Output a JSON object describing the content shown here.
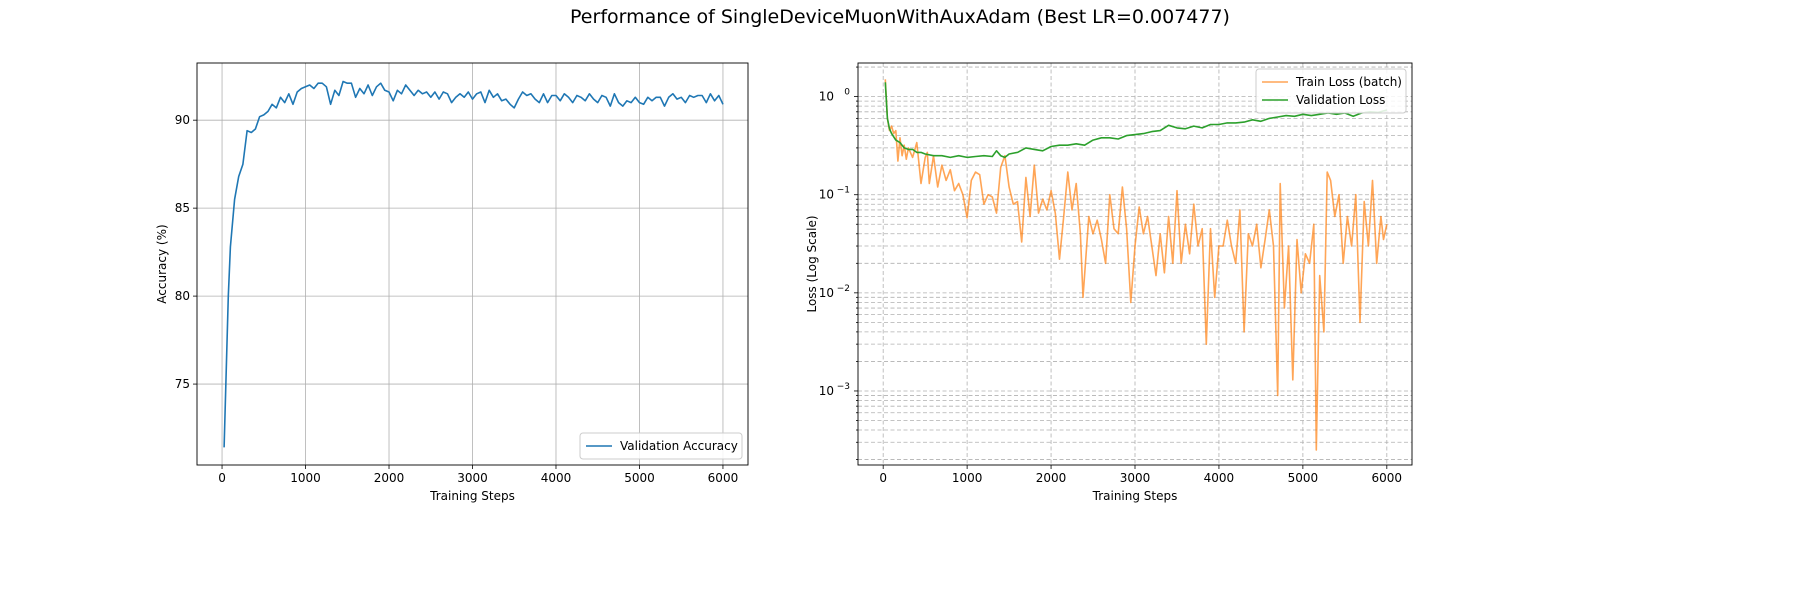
{
  "title": "Performance of SingleDeviceMuonWithAuxAdam (Best LR=0.007477)",
  "chart_data": [
    {
      "type": "line",
      "xlabel": "Training Steps",
      "ylabel": "Accuracy (%)",
      "xlim": [
        -300,
        6300
      ],
      "ylim": [
        70.4,
        93.25
      ],
      "xticks": [
        0,
        1000,
        2000,
        3000,
        4000,
        5000,
        6000
      ],
      "yticks": [
        75,
        80,
        85,
        90
      ],
      "grid": true,
      "legend_placement": "lower-right",
      "series": [
        {
          "name": "Validation Accuracy",
          "color": "#1f77b4",
          "x": [
            25,
            75,
            100,
            150,
            200,
            250,
            300,
            350,
            400,
            450,
            500,
            550,
            600,
            650,
            700,
            750,
            800,
            850,
            900,
            950,
            1000,
            1050,
            1100,
            1150,
            1200,
            1250,
            1300,
            1350,
            1400,
            1450,
            1500,
            1550,
            1600,
            1650,
            1700,
            1750,
            1800,
            1850,
            1900,
            1950,
            2000,
            2050,
            2100,
            2150,
            2200,
            2250,
            2300,
            2350,
            2400,
            2450,
            2500,
            2550,
            2600,
            2650,
            2700,
            2750,
            2800,
            2850,
            2900,
            2950,
            3000,
            3050,
            3100,
            3150,
            3200,
            3250,
            3300,
            3350,
            3400,
            3450,
            3500,
            3550,
            3600,
            3650,
            3700,
            3750,
            3800,
            3850,
            3900,
            3950,
            4000,
            4050,
            4100,
            4150,
            4200,
            4250,
            4300,
            4350,
            4400,
            4450,
            4500,
            4550,
            4600,
            4650,
            4700,
            4750,
            4800,
            4850,
            4900,
            4950,
            5000,
            5050,
            5100,
            5150,
            5200,
            5250,
            5300,
            5350,
            5400,
            5450,
            5500,
            5550,
            5600,
            5650,
            5700,
            5750,
            5800,
            5850,
            5900,
            5950,
            6000
          ],
          "y": [
            71.4,
            80.0,
            82.8,
            85.5,
            86.8,
            87.5,
            89.4,
            89.3,
            89.5,
            90.2,
            90.3,
            90.5,
            90.9,
            90.7,
            91.3,
            91.0,
            91.5,
            90.9,
            91.6,
            91.8,
            91.9,
            92.0,
            91.8,
            92.1,
            92.1,
            91.9,
            90.9,
            91.7,
            91.4,
            92.2,
            92.1,
            92.1,
            91.3,
            91.8,
            91.5,
            92.0,
            91.4,
            91.9,
            92.1,
            91.7,
            91.6,
            91.1,
            91.7,
            91.5,
            92.0,
            91.7,
            91.4,
            91.7,
            91.5,
            91.6,
            91.3,
            91.6,
            91.2,
            91.6,
            91.5,
            91.0,
            91.3,
            91.5,
            91.3,
            91.6,
            91.2,
            91.5,
            91.6,
            91.0,
            91.7,
            91.3,
            91.5,
            91.1,
            91.2,
            90.9,
            90.7,
            91.2,
            91.6,
            91.4,
            91.5,
            91.2,
            91.0,
            91.5,
            91.0,
            91.4,
            91.4,
            91.1,
            91.5,
            91.3,
            91.0,
            91.4,
            91.3,
            91.1,
            91.5,
            91.2,
            91.0,
            91.4,
            91.3,
            90.8,
            91.5,
            91.0,
            90.8,
            91.1,
            91.0,
            91.3,
            91.0,
            90.9,
            91.3,
            91.1,
            91.3,
            91.3,
            90.8,
            91.3,
            91.5,
            91.2,
            91.3,
            91.0,
            91.4,
            91.3,
            91.4,
            91.4,
            91.0,
            91.5,
            91.1,
            91.4,
            90.9
          ]
        }
      ]
    },
    {
      "type": "line",
      "yscale": "log",
      "xlabel": "Training Steps",
      "ylabel": "Loss (Log Scale)",
      "xlim": [
        -300,
        6300
      ],
      "ylim": [
        0.000176,
        2.2
      ],
      "xticks": [
        0,
        1000,
        2000,
        3000,
        4000,
        5000,
        6000
      ],
      "yticks": [
        -3,
        -2,
        -1,
        0
      ],
      "ytick_base": "10",
      "grid": true,
      "legend_placement": "upper-right",
      "series": [
        {
          "name": "Train Loss (batch)",
          "color": "#ff7f0e",
          "x": [
            25,
            50,
            75,
            100,
            125,
            150,
            175,
            200,
            225,
            250,
            275,
            300,
            350,
            400,
            450,
            500,
            525,
            550,
            600,
            650,
            700,
            750,
            800,
            850,
            900,
            950,
            1000,
            1050,
            1100,
            1150,
            1200,
            1250,
            1300,
            1350,
            1400,
            1450,
            1500,
            1550,
            1600,
            1650,
            1700,
            1750,
            1800,
            1850,
            1900,
            1950,
            2000,
            2050,
            2100,
            2150,
            2200,
            2250,
            2300,
            2350,
            2380,
            2450,
            2500,
            2550,
            2600,
            2650,
            2700,
            2750,
            2800,
            2850,
            2900,
            2950,
            3000,
            3050,
            3100,
            3150,
            3200,
            3250,
            3300,
            3350,
            3400,
            3450,
            3500,
            3550,
            3600,
            3650,
            3700,
            3750,
            3800,
            3850,
            3900,
            3950,
            4000,
            4050,
            4100,
            4150,
            4200,
            4250,
            4300,
            4350,
            4400,
            4450,
            4500,
            4550,
            4600,
            4650,
            4700,
            4730,
            4780,
            4830,
            4880,
            4930,
            4980,
            5030,
            5080,
            5130,
            5160,
            5200,
            5250,
            5290,
            5330,
            5380,
            5430,
            5480,
            5530,
            5580,
            5630,
            5680,
            5730,
            5780,
            5830,
            5880,
            5930,
            5960,
            6000
          ],
          "y": [
            1.5,
            0.6,
            0.45,
            0.5,
            0.42,
            0.45,
            0.22,
            0.38,
            0.25,
            0.32,
            0.23,
            0.3,
            0.24,
            0.34,
            0.13,
            0.24,
            0.27,
            0.13,
            0.25,
            0.12,
            0.2,
            0.14,
            0.18,
            0.11,
            0.13,
            0.1,
            0.058,
            0.14,
            0.17,
            0.16,
            0.08,
            0.1,
            0.095,
            0.065,
            0.19,
            0.25,
            0.12,
            0.08,
            0.085,
            0.033,
            0.15,
            0.06,
            0.2,
            0.065,
            0.09,
            0.07,
            0.11,
            0.065,
            0.022,
            0.06,
            0.17,
            0.07,
            0.13,
            0.04,
            0.009,
            0.06,
            0.04,
            0.055,
            0.035,
            0.02,
            0.1,
            0.045,
            0.04,
            0.12,
            0.045,
            0.008,
            0.03,
            0.075,
            0.04,
            0.06,
            0.03,
            0.015,
            0.04,
            0.016,
            0.06,
            0.02,
            0.11,
            0.02,
            0.05,
            0.025,
            0.08,
            0.03,
            0.045,
            0.003,
            0.045,
            0.009,
            0.03,
            0.03,
            0.055,
            0.03,
            0.02,
            0.07,
            0.004,
            0.04,
            0.03,
            0.05,
            0.018,
            0.035,
            0.07,
            0.03,
            0.0009,
            0.13,
            0.007,
            0.03,
            0.0013,
            0.035,
            0.01,
            0.025,
            0.02,
            0.05,
            0.00025,
            0.015,
            0.004,
            0.17,
            0.14,
            0.06,
            0.1,
            0.02,
            0.06,
            0.03,
            0.1,
            0.005,
            0.085,
            0.03,
            0.14,
            0.02,
            0.06,
            0.035,
            0.05
          ]
        },
        {
          "name": "Validation Loss",
          "color": "#2ca02c",
          "x": [
            25,
            50,
            75,
            100,
            150,
            200,
            250,
            300,
            350,
            400,
            450,
            500,
            600,
            700,
            800,
            900,
            1000,
            1100,
            1200,
            1300,
            1350,
            1400,
            1450,
            1500,
            1600,
            1700,
            1800,
            1900,
            2000,
            2100,
            2200,
            2300,
            2400,
            2500,
            2600,
            2700,
            2800,
            2900,
            3000,
            3100,
            3200,
            3300,
            3400,
            3500,
            3600,
            3700,
            3800,
            3900,
            4000,
            4100,
            4200,
            4300,
            4400,
            4500,
            4600,
            4700,
            4800,
            4900,
            5000,
            5100,
            5200,
            5300,
            5400,
            5500,
            5600,
            5700,
            5800,
            5900,
            6000
          ],
          "y": [
            1.4,
            0.6,
            0.47,
            0.42,
            0.36,
            0.34,
            0.3,
            0.29,
            0.29,
            0.27,
            0.27,
            0.26,
            0.25,
            0.25,
            0.24,
            0.25,
            0.24,
            0.245,
            0.25,
            0.245,
            0.28,
            0.25,
            0.24,
            0.26,
            0.27,
            0.3,
            0.29,
            0.28,
            0.31,
            0.32,
            0.32,
            0.33,
            0.32,
            0.36,
            0.38,
            0.38,
            0.37,
            0.4,
            0.41,
            0.42,
            0.44,
            0.45,
            0.51,
            0.48,
            0.47,
            0.5,
            0.48,
            0.52,
            0.52,
            0.54,
            0.54,
            0.55,
            0.58,
            0.56,
            0.6,
            0.62,
            0.64,
            0.63,
            0.66,
            0.64,
            0.66,
            0.68,
            0.66,
            0.68,
            0.63,
            0.68,
            0.7,
            0.69,
            0.73
          ]
        }
      ]
    }
  ]
}
